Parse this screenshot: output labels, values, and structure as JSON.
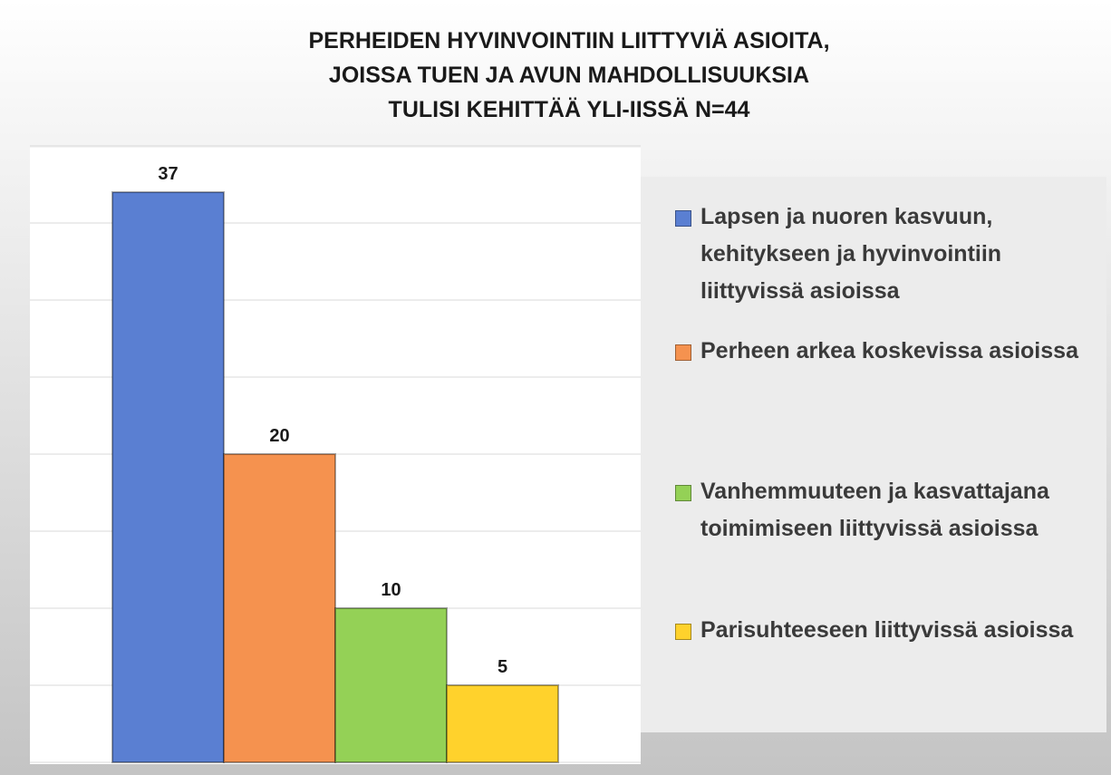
{
  "chart_data": {
    "type": "bar",
    "title": [
      "PERHEIDEN HYVINVOINTIIN LIITTYVIÄ ASIOITA,",
      "JOISSA TUEN JA AVUN MAHDOLLISUUKSIA",
      "TULISI KEHITTÄÄ YLI-IISSÄ N=44"
    ],
    "series": [
      {
        "name": "Lapsen ja nuoren kasvuun, kehitykseen ja hyvinvointiin liittyvissä asioissa",
        "color": "#5a7fd2",
        "values": [
          37
        ]
      },
      {
        "name": "Perheen arkea koskevissa asioissa",
        "color": "#f5924f",
        "values": [
          20
        ]
      },
      {
        "name": "Vanhemmuuteen ja kasvattajana toimimiseen liittyvissä asioissa",
        "color": "#94d156",
        "values": [
          10
        ]
      },
      {
        "name": "Parisuhteeseen liittyvissä asioissa",
        "color": "#ffd22c",
        "values": [
          5
        ]
      }
    ],
    "ylim": [
      0,
      40
    ],
    "yticks": [
      0,
      5,
      10,
      15,
      20,
      25,
      30,
      35,
      40
    ],
    "grid": true,
    "legend": "right"
  }
}
